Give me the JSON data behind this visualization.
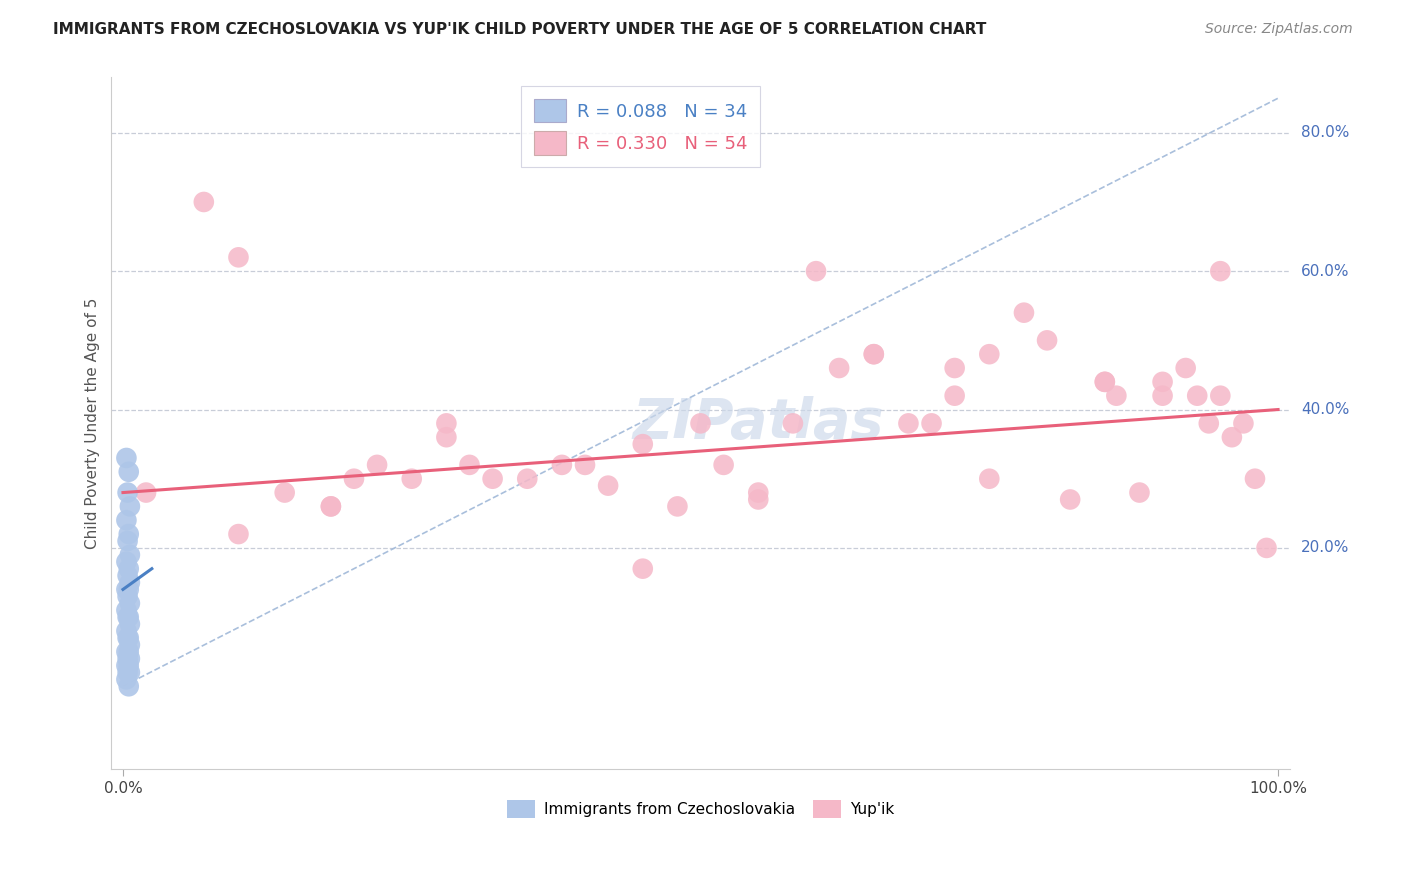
{
  "title": "IMMIGRANTS FROM CZECHOSLOVAKIA VS YUP'IK CHILD POVERTY UNDER THE AGE OF 5 CORRELATION CHART",
  "source": "Source: ZipAtlas.com",
  "ylabel": "Child Poverty Under the Age of 5",
  "legend1_label": "Immigrants from Czechoslovakia",
  "legend2_label": "Yup'ik",
  "R1": 0.088,
  "N1": 34,
  "R2": 0.33,
  "N2": 54,
  "color_blue": "#aec6e8",
  "color_pink": "#f5b8c8",
  "line_blue": "#4a80c4",
  "line_pink": "#e8607a",
  "line_dash_color": "#a0b8d8",
  "watermark_text": "ZIPatlas",
  "ytick_vals": [
    20,
    40,
    60,
    80
  ],
  "ytick_labels": [
    "20.0%",
    "40.0%",
    "60.0%",
    "80.0%"
  ],
  "blue_x": [
    0.3,
    0.5,
    0.4,
    0.6,
    0.3,
    0.5,
    0.4,
    0.6,
    0.3,
    0.5,
    0.4,
    0.6,
    0.3,
    0.5,
    0.4,
    0.6,
    0.3,
    0.5,
    0.4,
    0.6,
    0.3,
    0.5,
    0.4,
    0.6,
    0.3,
    0.5,
    0.4,
    0.6,
    0.3,
    0.5,
    0.4,
    0.6,
    0.3,
    0.5
  ],
  "blue_y": [
    33,
    31,
    28,
    26,
    24,
    22,
    21,
    19,
    18,
    17,
    16,
    15,
    14,
    14,
    13,
    12,
    11,
    10,
    10,
    9,
    8,
    7,
    7,
    6,
    5,
    5,
    4,
    4,
    3,
    3,
    2,
    2,
    1,
    0
  ],
  "pink_x": [
    2,
    7,
    10,
    14,
    18,
    22,
    25,
    28,
    32,
    35,
    38,
    42,
    45,
    48,
    50,
    52,
    55,
    58,
    60,
    62,
    65,
    68,
    70,
    72,
    75,
    78,
    80,
    82,
    85,
    86,
    88,
    90,
    92,
    93,
    94,
    95,
    96,
    97,
    98,
    99,
    20,
    30,
    40,
    55,
    65,
    75,
    85,
    90,
    95,
    10,
    18,
    28,
    45,
    72
  ],
  "pink_y": [
    28,
    70,
    62,
    28,
    26,
    32,
    30,
    38,
    30,
    30,
    32,
    29,
    35,
    26,
    38,
    32,
    27,
    38,
    60,
    46,
    48,
    38,
    38,
    42,
    48,
    54,
    50,
    27,
    44,
    42,
    28,
    44,
    46,
    42,
    38,
    42,
    36,
    38,
    30,
    20,
    30,
    32,
    32,
    28,
    48,
    30,
    44,
    42,
    60,
    22,
    26,
    36,
    17,
    46
  ]
}
